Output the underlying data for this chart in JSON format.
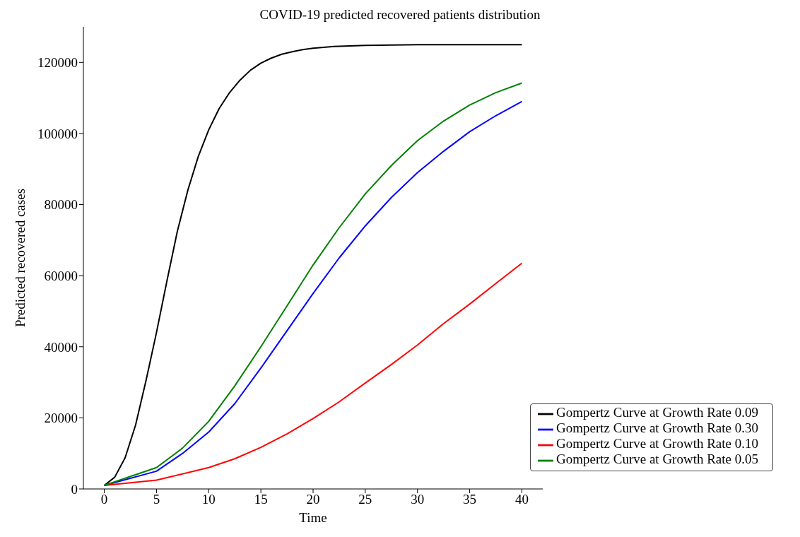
{
  "chart_data": {
    "type": "line",
    "title": "COVID-19 predicted recovered patients distribution",
    "xlabel": "Time",
    "ylabel": "Predicted recovered cases",
    "xlim": [
      -2,
      42
    ],
    "xticks": [
      0,
      5,
      10,
      15,
      20,
      25,
      30,
      35,
      40
    ],
    "ylim": [
      0,
      130000
    ],
    "yticks": [
      0,
      20000,
      40000,
      60000,
      80000,
      100000,
      120000
    ],
    "grid": false,
    "legend": "bottom right",
    "marker": "none",
    "line_style": "solid",
    "series": [
      {
        "name": "Gompertz Curve at Growth Rate 0.09",
        "color": "#000000",
        "x": [
          0,
          1,
          2,
          3,
          4,
          5,
          6,
          7,
          8,
          9,
          10,
          11,
          12,
          13,
          14,
          15,
          16,
          17,
          18,
          19,
          20,
          22,
          25,
          30,
          40
        ],
        "values": [
          1000,
          3300,
          8800,
          18000,
          30500,
          44000,
          58500,
          72500,
          84000,
          93500,
          101000,
          107000,
          111500,
          115000,
          117800,
          119800,
          121200,
          122300,
          123000,
          123600,
          124000,
          124500,
          124800,
          125000,
          125000
        ]
      },
      {
        "name": "Gompertz Curve at Growth Rate 0.30",
        "color": "#0000ff",
        "x": [
          0,
          5,
          7.5,
          10,
          12.5,
          15,
          17.5,
          20,
          22.5,
          25,
          27.5,
          30,
          32.5,
          35,
          37.5,
          40
        ],
        "values": [
          1000,
          5000,
          10000,
          16000,
          24000,
          34000,
          44500,
          55000,
          65000,
          74000,
          82000,
          89000,
          95000,
          100500,
          105000,
          109000
        ]
      },
      {
        "name": "Gompertz Curve at Growth Rate 0.10",
        "color": "#ff0000",
        "x": [
          0,
          5,
          10,
          12.5,
          15,
          17.5,
          20,
          22.5,
          25,
          27.5,
          30,
          32.5,
          35,
          37.5,
          40
        ],
        "values": [
          1000,
          2500,
          6000,
          8500,
          11700,
          15500,
          19800,
          24500,
          29800,
          35000,
          40500,
          46500,
          52000,
          57800,
          63500
        ]
      },
      {
        "name": "Gompertz Curve at Growth Rate 0.05",
        "color": "#008000",
        "x": [
          0,
          5,
          7.5,
          10,
          12.5,
          15,
          17.5,
          20,
          22.5,
          25,
          27.5,
          30,
          32.5,
          35,
          37.5,
          40
        ],
        "values": [
          1000,
          6000,
          11500,
          19000,
          29000,
          40000,
          51500,
          63000,
          73500,
          83000,
          91000,
          98000,
          103500,
          108000,
          111500,
          114200
        ]
      }
    ]
  }
}
